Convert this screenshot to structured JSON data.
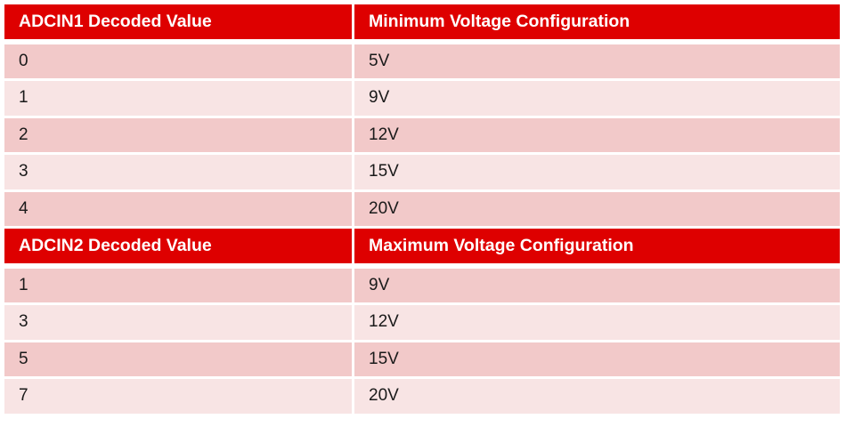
{
  "colors": {
    "header": "#DE0000",
    "row_odd": "#F2C9C9",
    "row_even": "#F8E4E4"
  },
  "sections": [
    {
      "headers": [
        "ADCIN1 Decoded Value",
        "Minimum Voltage Configuration"
      ],
      "rows": [
        [
          "0",
          "5V"
        ],
        [
          "1",
          "9V"
        ],
        [
          "2",
          "12V"
        ],
        [
          "3",
          "15V"
        ],
        [
          "4",
          "20V"
        ]
      ]
    },
    {
      "headers": [
        "ADCIN2 Decoded Value",
        "Maximum Voltage Configuration"
      ],
      "rows": [
        [
          "1",
          "9V"
        ],
        [
          "3",
          "12V"
        ],
        [
          "5",
          "15V"
        ],
        [
          "7",
          "20V"
        ]
      ]
    }
  ]
}
